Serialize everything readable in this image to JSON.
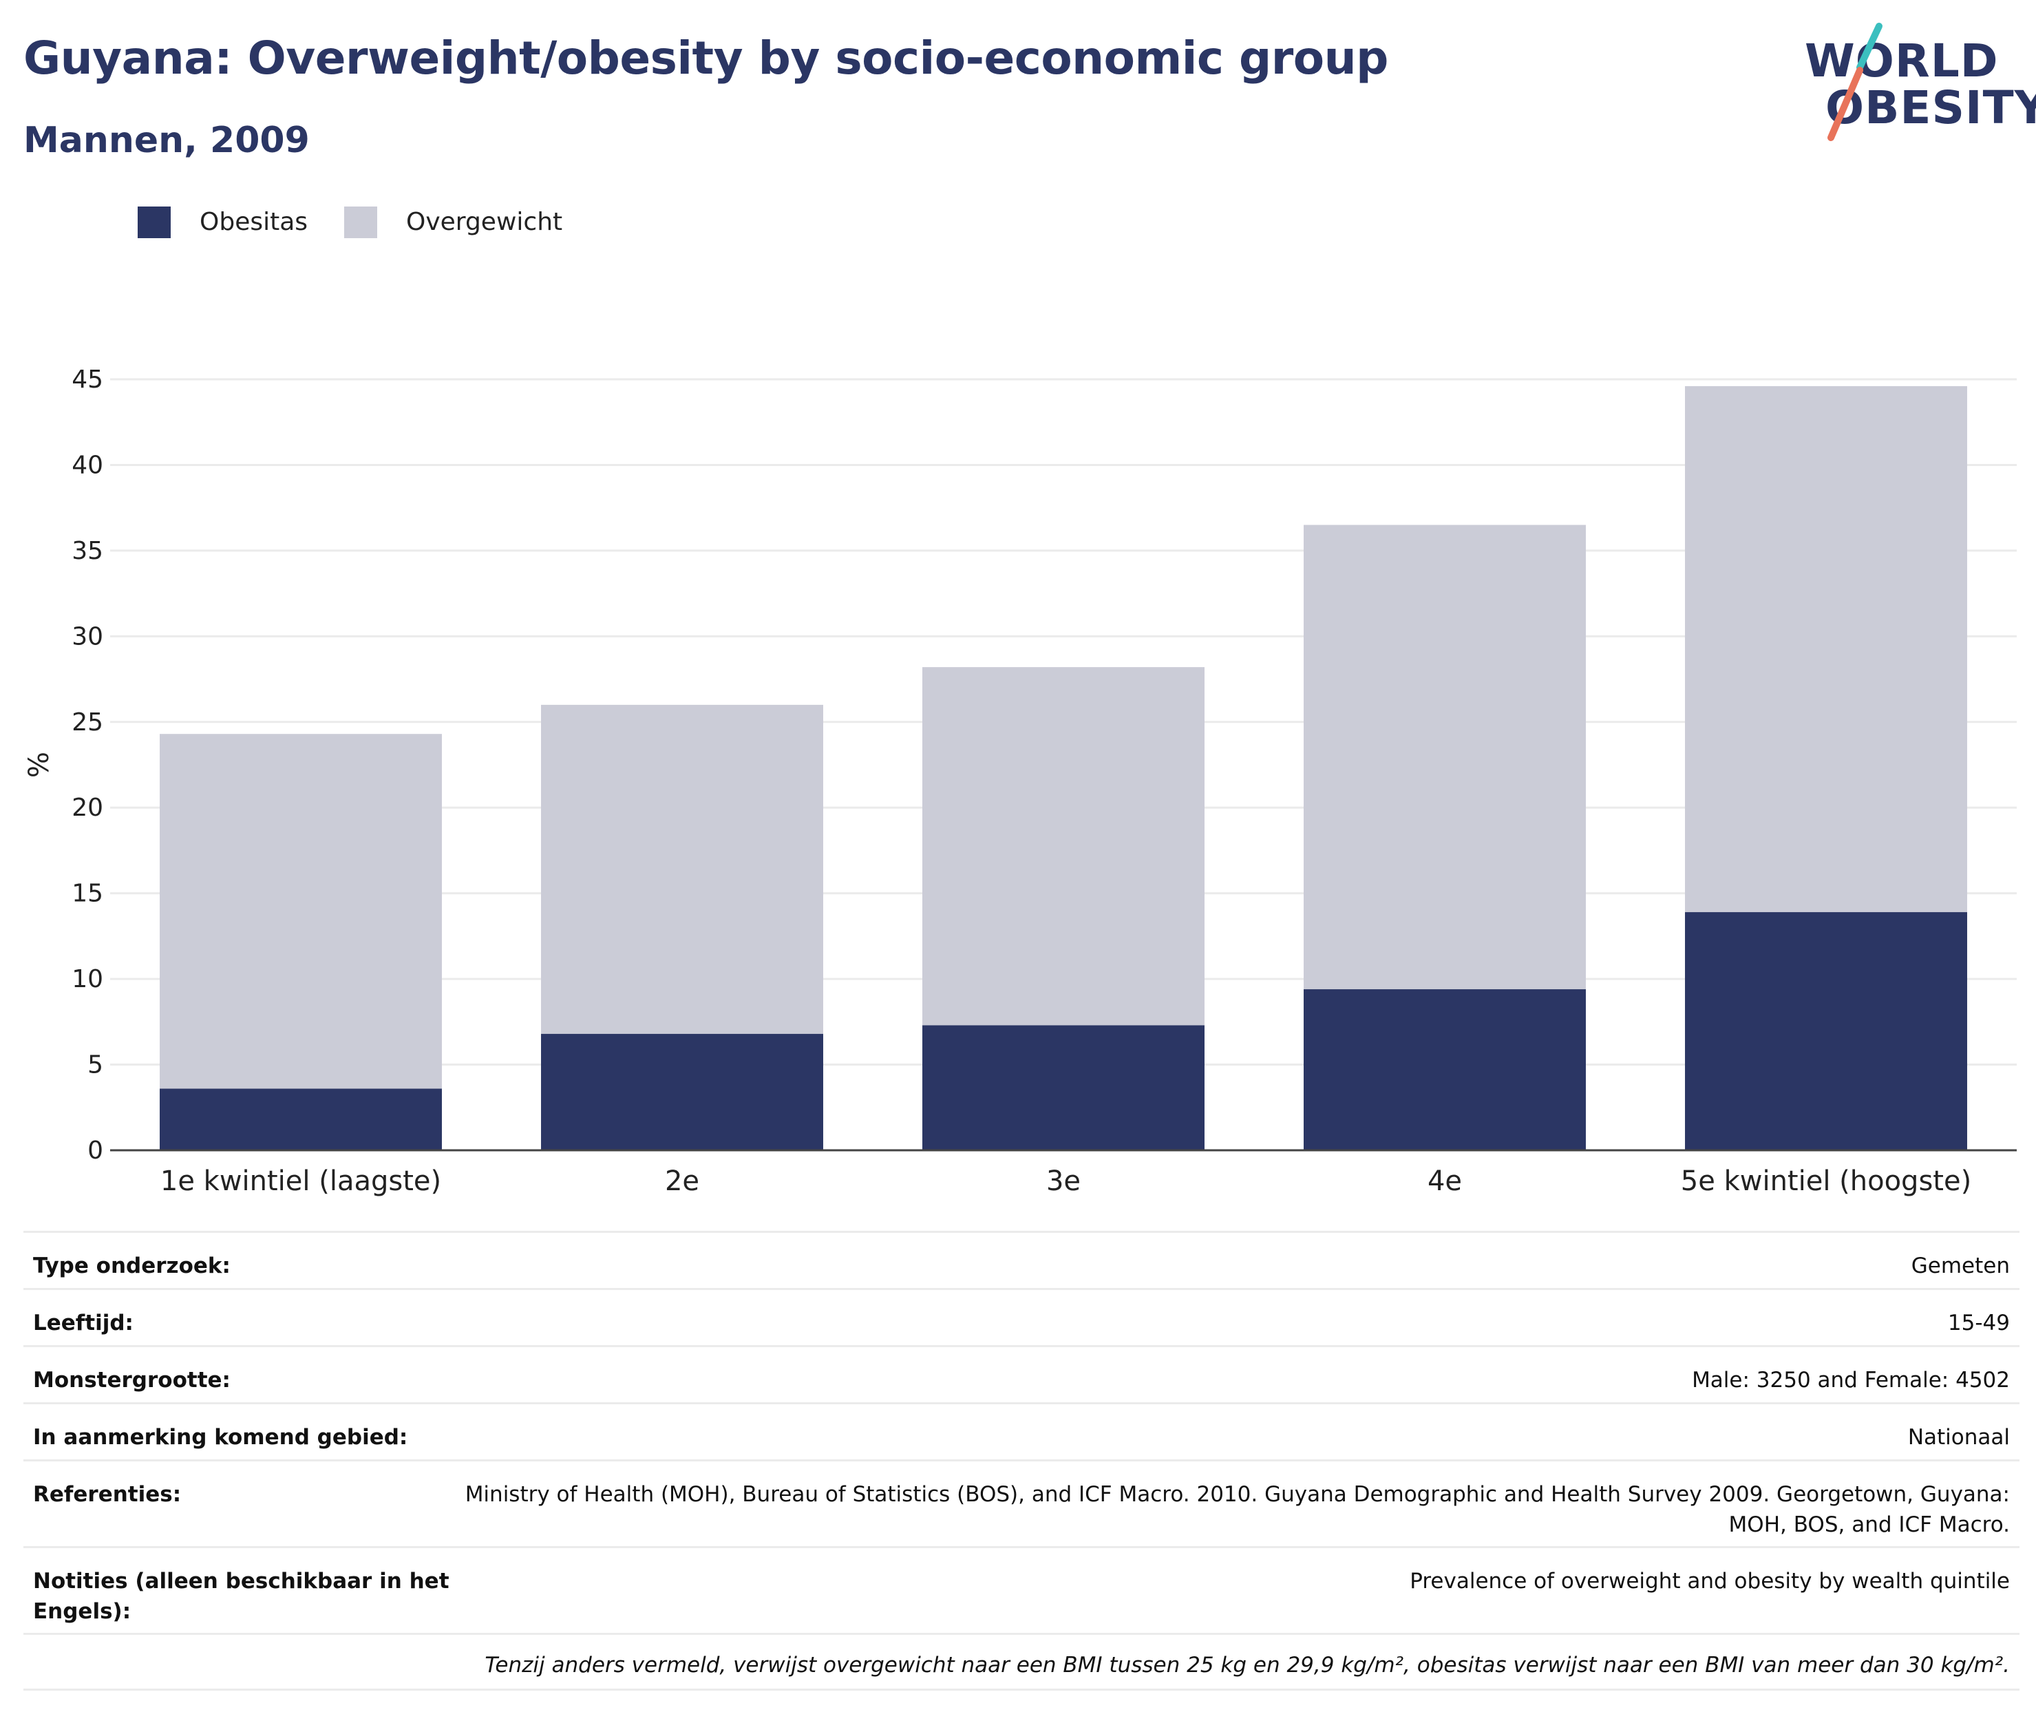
{
  "header": {
    "title": "Guyana: Overweight/obesity by socio-economic group",
    "subtitle": "Mannen, 2009"
  },
  "logo": {
    "line1": "WORLD",
    "line2": "OBESITY",
    "colors": [
      "#2b3664",
      "#3bbfbf",
      "#e8735a"
    ]
  },
  "legend": [
    {
      "label": "Obesitas",
      "color": "#2b3664"
    },
    {
      "label": "Overgewicht",
      "color": "#cbccd7"
    }
  ],
  "chart_data": {
    "type": "bar",
    "stacked": true,
    "categories": [
      "1e kwintiel (laagste)",
      "2e",
      "3e",
      "4e",
      "5e kwintiel (hoogste)"
    ],
    "series": [
      {
        "name": "Obesitas",
        "color": "#2b3664",
        "values": [
          3.6,
          6.8,
          7.3,
          9.4,
          13.9
        ]
      },
      {
        "name": "Overgewicht",
        "color": "#cbccd7",
        "values": [
          20.7,
          19.2,
          20.9,
          27.1,
          30.7
        ]
      }
    ],
    "ylabel": "%",
    "ylim": [
      0,
      45
    ],
    "yticks": [
      0,
      5,
      10,
      15,
      20,
      25,
      30,
      35,
      40,
      45
    ],
    "grid": true,
    "legend_position": "top-left"
  },
  "meta": {
    "rows": [
      {
        "label": "Type onderzoek:",
        "value": "Gemeten"
      },
      {
        "label": "Leeftijd:",
        "value": "15-49"
      },
      {
        "label": "Monstergrootte:",
        "value": "Male: 3250 and Female: 4502"
      },
      {
        "label": "In aanmerking komend gebied:",
        "value": "Nationaal"
      },
      {
        "label": "Referenties:",
        "value": "Ministry of Health (MOH), Bureau of Statistics (BOS), and ICF Macro. 2010. Guyana Demographic and Health Survey 2009. Georgetown, Guyana: MOH, BOS, and ICF Macro."
      },
      {
        "label": "Notities (alleen beschikbaar in het Engels):",
        "value": "Prevalence of overweight and obesity by wealth quintile"
      }
    ],
    "footnote": "Tenzij anders vermeld, verwijst overgewicht naar een BMI tussen 25 kg en 29,9 kg/m², obesitas verwijst naar een BMI van meer dan 30 kg/m²."
  }
}
